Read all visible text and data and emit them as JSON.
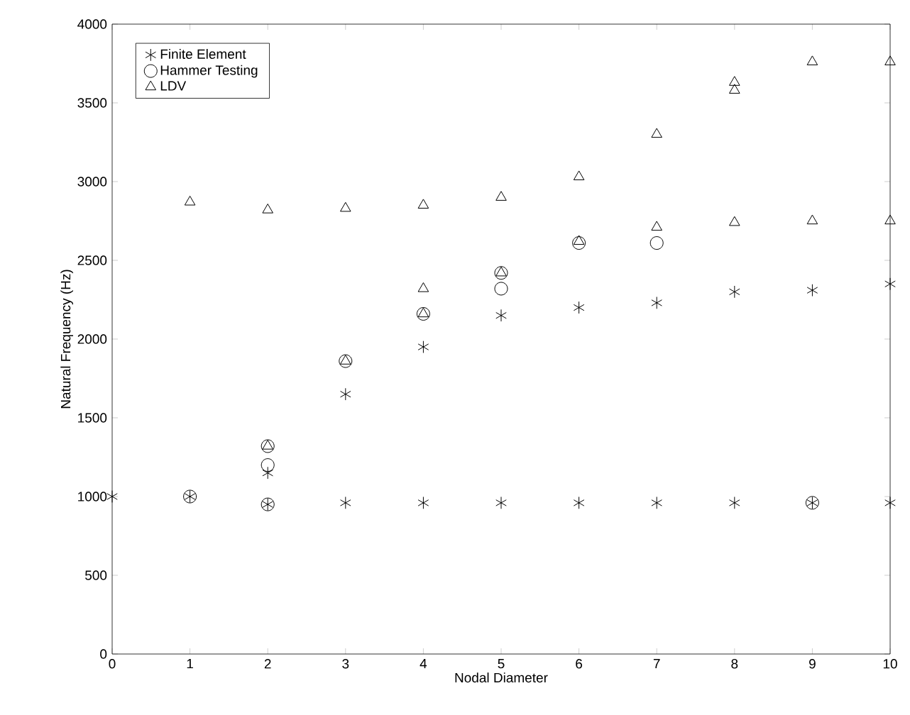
{
  "chart_data": {
    "type": "scatter",
    "xlabel": "Nodal Diameter",
    "ylabel": "Natural Frequency (Hz)",
    "xlim": [
      0,
      10
    ],
    "ylim": [
      0,
      4000
    ],
    "xticks": [
      0,
      1,
      2,
      3,
      4,
      5,
      6,
      7,
      8,
      9,
      10
    ],
    "yticks": [
      0,
      500,
      1000,
      1500,
      2000,
      2500,
      3000,
      3500,
      4000
    ],
    "grid": false,
    "legend": "top left",
    "series": [
      {
        "name": "Finite Element",
        "color": "#000000",
        "marker": "cross",
        "x": [
          0,
          1,
          2,
          2,
          3,
          3,
          4,
          4,
          5,
          5,
          6,
          6,
          7,
          7,
          8,
          8,
          9,
          9,
          10,
          10
        ],
        "values": [
          1000,
          1000,
          950,
          1150,
          960,
          1650,
          960,
          1950,
          960,
          2150,
          960,
          2200,
          960,
          2230,
          960,
          2300,
          960,
          2310,
          960,
          2350
        ]
      },
      {
        "name": "Hammer Testing",
        "color": "#000000",
        "marker": "circle",
        "x": [
          1,
          2,
          2,
          2,
          3,
          4,
          5,
          5,
          6,
          7,
          9
        ],
        "values": [
          1000,
          950,
          1200,
          1320,
          1860,
          2160,
          2320,
          2420,
          2610,
          2610,
          960
        ]
      },
      {
        "name": "LDV",
        "color": "#000000",
        "marker": "triangle",
        "x": [
          1,
          2,
          2,
          3,
          3,
          4,
          4,
          4,
          5,
          5,
          6,
          6,
          7,
          7,
          8,
          8,
          8,
          9,
          9,
          10,
          10
        ],
        "values": [
          2870,
          2820,
          1320,
          2830,
          1860,
          2850,
          2320,
          2160,
          2900,
          2420,
          3030,
          2620,
          3300,
          2710,
          3630,
          3580,
          2740,
          3760,
          2750,
          3760,
          2750
        ]
      }
    ]
  }
}
